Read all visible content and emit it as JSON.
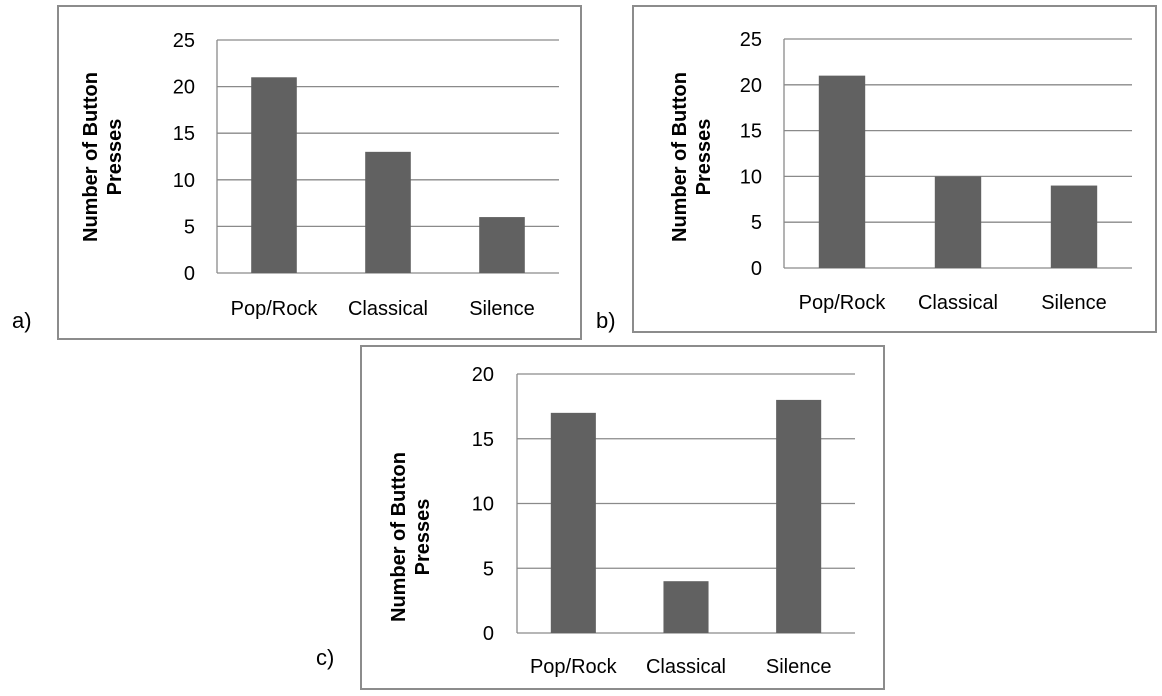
{
  "chart_data": [
    {
      "panel": "a)",
      "type": "bar",
      "categories": [
        "Pop/Rock",
        "Classical",
        "Silence"
      ],
      "values": [
        21,
        13,
        6
      ],
      "ylabel_lines": [
        "Number of Button",
        "Presses"
      ],
      "ylim": [
        0,
        25
      ],
      "yticks": [
        0,
        5,
        10,
        15,
        20,
        25
      ],
      "grid": true,
      "bar_color": "#616161"
    },
    {
      "panel": "b)",
      "type": "bar",
      "categories": [
        "Pop/Rock",
        "Classical",
        "Silence"
      ],
      "values": [
        21,
        10,
        9
      ],
      "ylabel_lines": [
        "Number of Button",
        "Presses"
      ],
      "ylim": [
        0,
        25
      ],
      "yticks": [
        0,
        5,
        10,
        15,
        20,
        25
      ],
      "grid": true,
      "bar_color": "#616161"
    },
    {
      "panel": "c)",
      "type": "bar",
      "categories": [
        "Pop/Rock",
        "Classical",
        "Silence"
      ],
      "values": [
        17,
        4,
        18
      ],
      "ylabel_lines": [
        "Number of Button",
        "Presses"
      ],
      "ylim": [
        0,
        20
      ],
      "yticks": [
        0,
        5,
        10,
        15,
        20
      ],
      "grid": true,
      "bar_color": "#616161"
    }
  ]
}
